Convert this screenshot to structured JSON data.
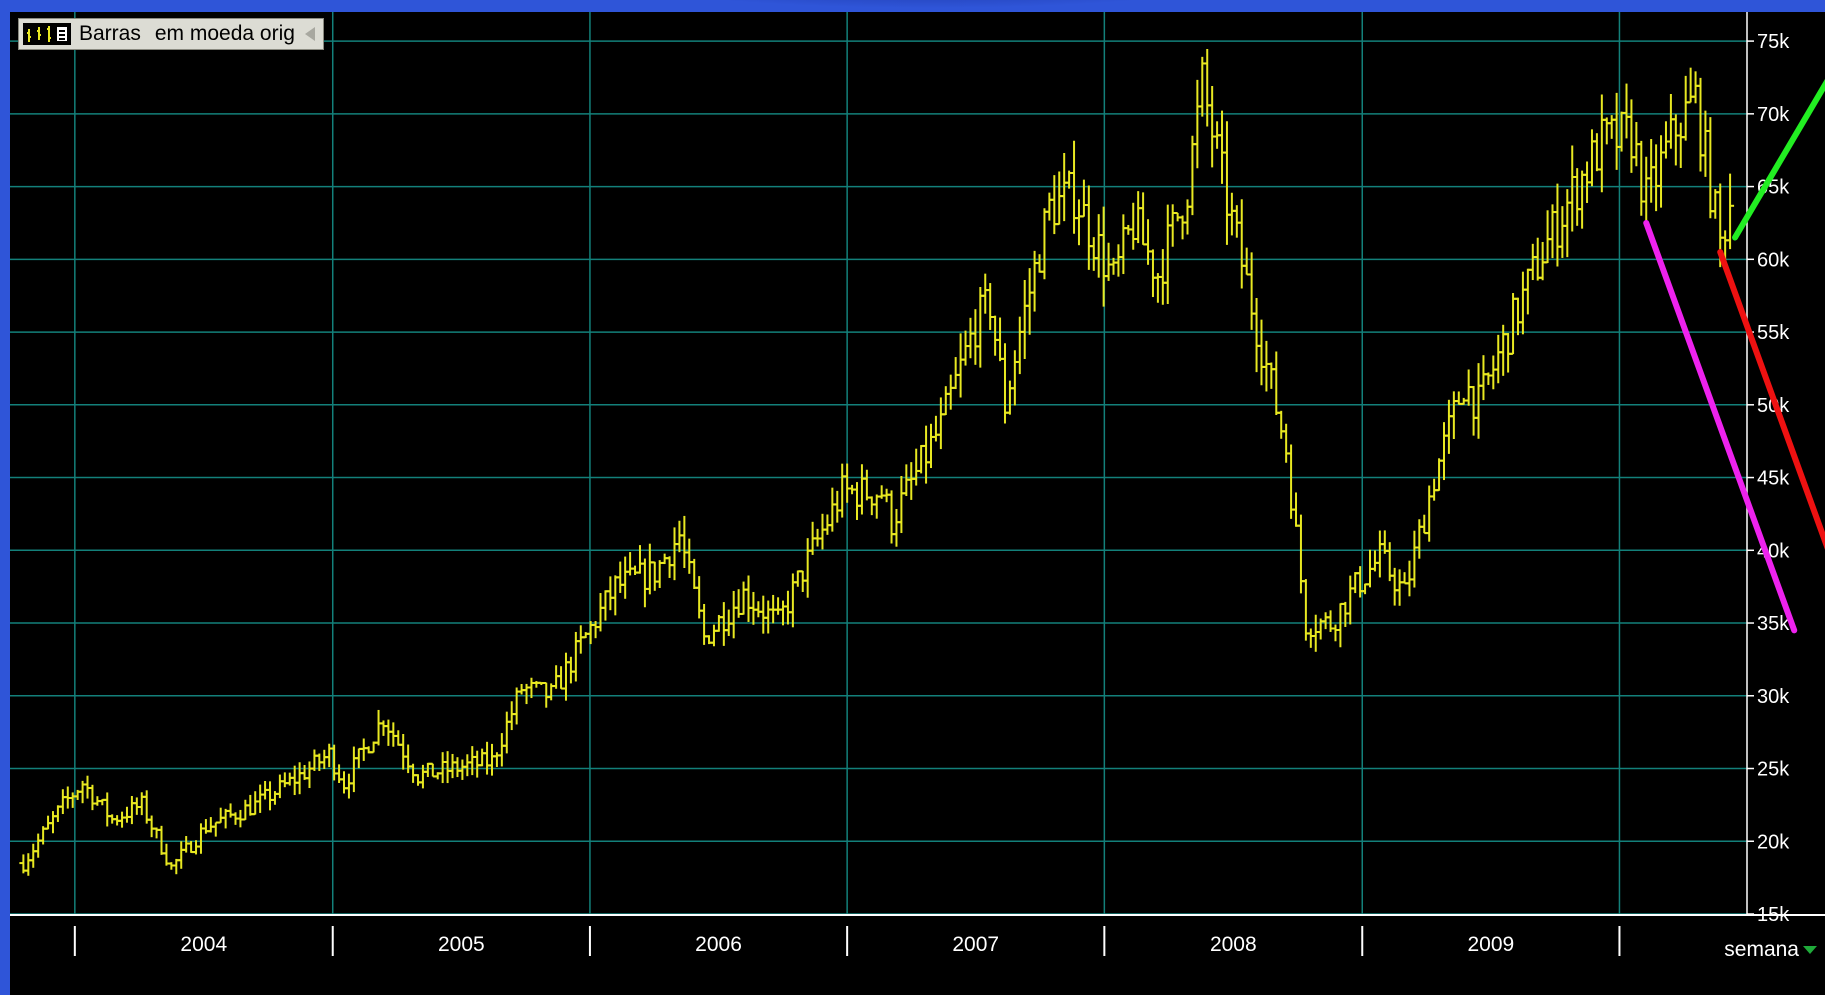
{
  "legend": {
    "chart_style": "Barras",
    "currency_mode": "em moeda orig"
  },
  "period_selector": "semana",
  "icons": {
    "bars": "bar-chart-icon",
    "collapse": "collapse-left-icon",
    "dropdown": "chevron-down-icon"
  },
  "colors": {
    "background": "#000000",
    "grid": "#13807a",
    "price_bars": "#e8e821",
    "axis_text": "#ffffff",
    "frame_outer": "#2f55d8",
    "trend_green": "#22ee22",
    "trend_red": "#ee1111",
    "trend_magenta": "#ee22ee"
  },
  "chart_data": {
    "type": "ohlc",
    "title": "",
    "xlabel": "",
    "ylabel": "",
    "x_start": "2003-10",
    "x_end": "2010-07",
    "ylim": [
      15000,
      77000
    ],
    "y_ticks": [
      15000,
      20000,
      25000,
      30000,
      35000,
      40000,
      45000,
      50000,
      55000,
      60000,
      65000,
      70000,
      75000
    ],
    "y_tick_labels": [
      "15k",
      "20k",
      "25k",
      "30k",
      "35k",
      "40k",
      "45k",
      "50k",
      "55k",
      "60k",
      "65k",
      "70k",
      "75k"
    ],
    "x_ticks": [
      "2004",
      "2005",
      "2006",
      "2007",
      "2008",
      "2009"
    ],
    "grid": true,
    "interval": "weekly",
    "price_path": [
      [
        "2003-10-20",
        18500
      ],
      [
        "2003-12-15",
        22500
      ],
      [
        "2004-01-12",
        24000
      ],
      [
        "2004-02-23",
        21500
      ],
      [
        "2004-04-05",
        22500
      ],
      [
        "2004-05-17",
        18200
      ],
      [
        "2004-07-05",
        21000
      ],
      [
        "2004-09-13",
        22500
      ],
      [
        "2004-11-15",
        24500
      ],
      [
        "2004-12-27",
        26000
      ],
      [
        "2005-01-17",
        24000
      ],
      [
        "2005-03-14",
        28500
      ],
      [
        "2005-05-02",
        24500
      ],
      [
        "2005-06-20",
        25000
      ],
      [
        "2005-08-15",
        25500
      ],
      [
        "2005-09-26",
        30500
      ],
      [
        "2005-11-07",
        30000
      ],
      [
        "2005-12-19",
        33500
      ],
      [
        "2006-02-06",
        37500
      ],
      [
        "2006-04-03",
        38500
      ],
      [
        "2006-05-08",
        41000
      ],
      [
        "2006-06-12",
        34000
      ],
      [
        "2006-08-07",
        37000
      ],
      [
        "2006-09-25",
        35000
      ],
      [
        "2006-11-13",
        40000
      ],
      [
        "2006-12-25",
        44000
      ],
      [
        "2007-02-19",
        44000
      ],
      [
        "2007-03-05",
        42000
      ],
      [
        "2007-05-14",
        48500
      ],
      [
        "2007-07-02",
        55500
      ],
      [
        "2007-07-23",
        57000
      ],
      [
        "2007-08-13",
        50000
      ],
      [
        "2007-09-03",
        55000
      ],
      [
        "2007-10-15",
        63500
      ],
      [
        "2007-11-19",
        64500
      ],
      [
        "2008-01-14",
        58500
      ],
      [
        "2008-02-11",
        62500
      ],
      [
        "2008-03-17",
        59000
      ],
      [
        "2008-04-28",
        65000
      ],
      [
        "2008-05-19",
        72000
      ],
      [
        "2008-06-23",
        64000
      ],
      [
        "2008-08-04",
        55500
      ],
      [
        "2008-09-15",
        47000
      ],
      [
        "2008-10-13",
        35000
      ],
      [
        "2008-11-17",
        35000
      ],
      [
        "2008-12-22",
        37500
      ],
      [
        "2009-01-26",
        39500
      ],
      [
        "2009-03-02",
        37000
      ],
      [
        "2009-04-13",
        45000
      ],
      [
        "2009-05-25",
        51500
      ],
      [
        "2009-06-15",
        50000
      ],
      [
        "2009-07-27",
        55000
      ],
      [
        "2009-09-14",
        60500
      ],
      [
        "2009-10-26",
        64500
      ],
      [
        "2009-12-07",
        68000
      ],
      [
        "2010-01-18",
        68500
      ],
      [
        "2010-02-08",
        64000
      ],
      [
        "2010-03-22",
        69000
      ],
      [
        "2010-04-19",
        71000
      ],
      [
        "2010-05-24",
        61000
      ],
      [
        "2010-06-07",
        64000
      ]
    ],
    "trendlines": [
      {
        "color": "trend_green",
        "from": [
          "2010-06-14",
          61500
        ],
        "to": [
          "2010-11-01",
          73000
        ]
      },
      {
        "color": "trend_red",
        "from": [
          "2010-05-24",
          60500
        ],
        "to": [
          "2010-11-01",
          39000
        ]
      },
      {
        "color": "trend_magenta",
        "from": [
          "2010-02-08",
          62500
        ],
        "to": [
          "2010-09-06",
          34500
        ]
      }
    ]
  }
}
